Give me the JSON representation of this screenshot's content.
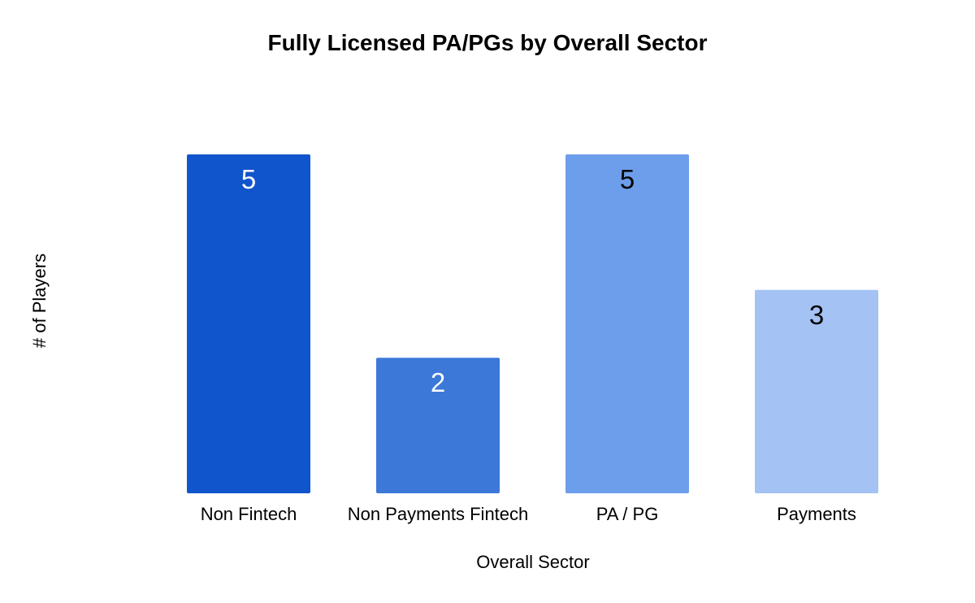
{
  "chart_data": {
    "type": "bar",
    "title": "Fully Licensed PA/PGs by Overall Sector",
    "xlabel": "Overall Sector",
    "ylabel": "# of Players",
    "categories": [
      "Non Fintech",
      "Non Payments Fintech",
      "PA / PG",
      "Payments"
    ],
    "values": [
      5,
      2,
      5,
      3
    ],
    "ylim": [
      0,
      5
    ],
    "grid": false,
    "legend": "none",
    "colors": [
      "#1155cc",
      "#3c78d8",
      "#6d9eeb",
      "#a4c2f4"
    ],
    "label_colors": [
      "#ffffff",
      "#ffffff",
      "#000000",
      "#000000"
    ]
  }
}
